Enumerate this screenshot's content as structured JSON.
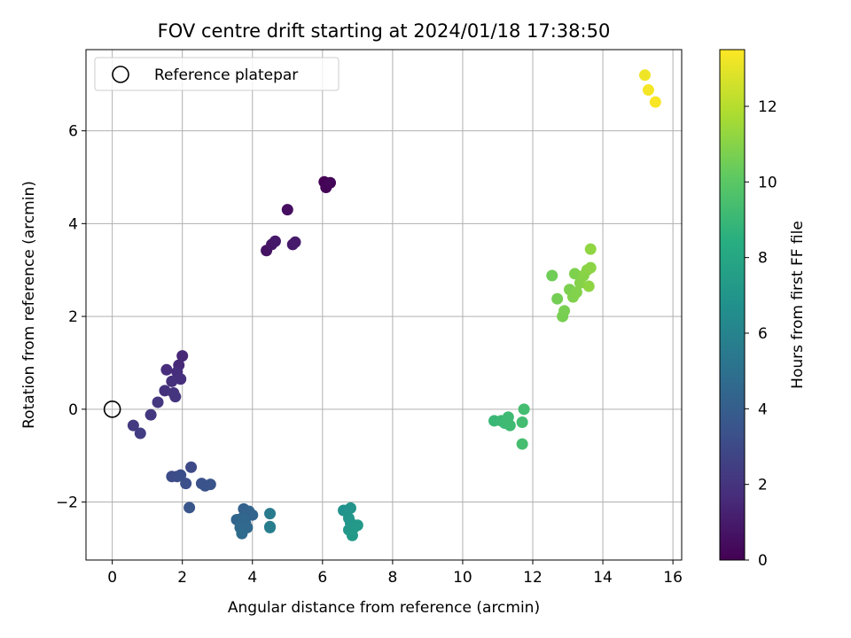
{
  "chart_data": {
    "type": "scatter",
    "title": "FOV centre drift starting at 2024/01/18 17:38:50",
    "xlabel": "Angular distance from reference (arcmin)",
    "ylabel": "Rotation from reference (arcmin)",
    "xlim": [
      -0.75,
      16.25
    ],
    "ylim": [
      -3.25,
      7.75
    ],
    "xticks": [
      0,
      2,
      4,
      6,
      8,
      10,
      12,
      14,
      16
    ],
    "xtick_labels": [
      "0",
      "2",
      "4",
      "6",
      "8",
      "10",
      "12",
      "14",
      "16"
    ],
    "yticks": [
      -2,
      0,
      2,
      4,
      6
    ],
    "ytick_labels": [
      "−2",
      "0",
      "2",
      "4",
      "6"
    ],
    "grid": true,
    "legend": {
      "placement": "upper-left",
      "entries": [
        {
          "label": "Reference platepar",
          "marker": "open-circle"
        }
      ]
    },
    "reference_point": {
      "x": 0,
      "y": 0
    },
    "colorbar": {
      "label": "Hours from first FF file",
      "range": [
        0,
        13.5
      ],
      "ticks": [
        0,
        2,
        4,
        6,
        8,
        10,
        12
      ],
      "tick_labels": [
        "0",
        "2",
        "4",
        "6",
        "8",
        "10",
        "12"
      ],
      "colormap": "viridis"
    },
    "points": [
      {
        "x": 6.05,
        "y": 4.9,
        "c": 0.0
      },
      {
        "x": 6.15,
        "y": 4.85,
        "c": 0.1
      },
      {
        "x": 6.1,
        "y": 4.78,
        "c": 0.15
      },
      {
        "x": 6.22,
        "y": 4.88,
        "c": 0.2
      },
      {
        "x": 5.0,
        "y": 4.3,
        "c": 0.5
      },
      {
        "x": 4.4,
        "y": 3.42,
        "c": 0.7
      },
      {
        "x": 4.55,
        "y": 3.55,
        "c": 0.8
      },
      {
        "x": 4.65,
        "y": 3.62,
        "c": 0.9
      },
      {
        "x": 5.15,
        "y": 3.55,
        "c": 0.95
      },
      {
        "x": 5.22,
        "y": 3.6,
        "c": 1.0
      },
      {
        "x": 2.0,
        "y": 1.15,
        "c": 1.5
      },
      {
        "x": 1.9,
        "y": 0.95,
        "c": 1.6
      },
      {
        "x": 1.55,
        "y": 0.85,
        "c": 1.7
      },
      {
        "x": 1.85,
        "y": 0.8,
        "c": 1.75
      },
      {
        "x": 1.95,
        "y": 0.65,
        "c": 1.8
      },
      {
        "x": 1.7,
        "y": 0.6,
        "c": 1.85
      },
      {
        "x": 1.5,
        "y": 0.4,
        "c": 1.9
      },
      {
        "x": 1.75,
        "y": 0.35,
        "c": 1.95
      },
      {
        "x": 1.8,
        "y": 0.27,
        "c": 2.0
      },
      {
        "x": 1.3,
        "y": 0.15,
        "c": 2.1
      },
      {
        "x": 1.1,
        "y": -0.12,
        "c": 2.2
      },
      {
        "x": 0.6,
        "y": -0.35,
        "c": 2.3
      },
      {
        "x": 0.8,
        "y": -0.52,
        "c": 2.4
      },
      {
        "x": 2.25,
        "y": -1.25,
        "c": 3.0
      },
      {
        "x": 1.7,
        "y": -1.45,
        "c": 3.1
      },
      {
        "x": 1.85,
        "y": -1.45,
        "c": 3.15
      },
      {
        "x": 1.95,
        "y": -1.42,
        "c": 3.2
      },
      {
        "x": 2.1,
        "y": -1.6,
        "c": 3.3
      },
      {
        "x": 2.55,
        "y": -1.6,
        "c": 3.4
      },
      {
        "x": 2.65,
        "y": -1.65,
        "c": 3.45
      },
      {
        "x": 2.8,
        "y": -1.62,
        "c": 3.5
      },
      {
        "x": 2.2,
        "y": -2.12,
        "c": 3.6
      },
      {
        "x": 3.75,
        "y": -2.15,
        "c": 4.2
      },
      {
        "x": 3.9,
        "y": -2.2,
        "c": 4.3
      },
      {
        "x": 4.0,
        "y": -2.28,
        "c": 4.35
      },
      {
        "x": 3.55,
        "y": -2.38,
        "c": 4.4
      },
      {
        "x": 3.7,
        "y": -2.35,
        "c": 4.45
      },
      {
        "x": 3.8,
        "y": -2.45,
        "c": 4.5
      },
      {
        "x": 3.85,
        "y": -2.55,
        "c": 4.55
      },
      {
        "x": 3.65,
        "y": -2.55,
        "c": 4.6
      },
      {
        "x": 3.7,
        "y": -2.68,
        "c": 4.7
      },
      {
        "x": 4.5,
        "y": -2.25,
        "c": 5.5
      },
      {
        "x": 4.5,
        "y": -2.53,
        "c": 5.6
      },
      {
        "x": 4.5,
        "y": -2.55,
        "c": 5.65
      },
      {
        "x": 6.6,
        "y": -2.18,
        "c": 6.8
      },
      {
        "x": 6.8,
        "y": -2.13,
        "c": 6.9
      },
      {
        "x": 6.75,
        "y": -2.35,
        "c": 7.0
      },
      {
        "x": 6.8,
        "y": -2.45,
        "c": 7.05
      },
      {
        "x": 6.75,
        "y": -2.6,
        "c": 7.1
      },
      {
        "x": 6.9,
        "y": -2.55,
        "c": 7.15
      },
      {
        "x": 7.0,
        "y": -2.5,
        "c": 7.2
      },
      {
        "x": 6.85,
        "y": -2.72,
        "c": 7.3
      },
      {
        "x": 10.9,
        "y": -0.25,
        "c": 9.0
      },
      {
        "x": 11.1,
        "y": -0.25,
        "c": 9.05
      },
      {
        "x": 11.2,
        "y": -0.3,
        "c": 9.1
      },
      {
        "x": 11.3,
        "y": -0.17,
        "c": 9.15
      },
      {
        "x": 11.35,
        "y": -0.35,
        "c": 9.2
      },
      {
        "x": 11.7,
        "y": -0.28,
        "c": 9.3
      },
      {
        "x": 11.75,
        "y": 0.0,
        "c": 9.35
      },
      {
        "x": 11.7,
        "y": -0.75,
        "c": 9.4
      },
      {
        "x": 12.55,
        "y": 2.88,
        "c": 10.5
      },
      {
        "x": 12.7,
        "y": 2.38,
        "c": 10.6
      },
      {
        "x": 12.85,
        "y": 2.0,
        "c": 10.65
      },
      {
        "x": 12.9,
        "y": 2.12,
        "c": 10.7
      },
      {
        "x": 13.05,
        "y": 2.58,
        "c": 10.75
      },
      {
        "x": 13.2,
        "y": 2.92,
        "c": 10.8
      },
      {
        "x": 13.15,
        "y": 2.42,
        "c": 10.85
      },
      {
        "x": 13.25,
        "y": 2.52,
        "c": 10.9
      },
      {
        "x": 13.35,
        "y": 2.72,
        "c": 10.95
      },
      {
        "x": 13.45,
        "y": 2.88,
        "c": 11.0
      },
      {
        "x": 13.55,
        "y": 3.0,
        "c": 11.05
      },
      {
        "x": 13.65,
        "y": 3.05,
        "c": 11.1
      },
      {
        "x": 13.6,
        "y": 2.65,
        "c": 11.15
      },
      {
        "x": 13.65,
        "y": 3.45,
        "c": 11.2
      },
      {
        "x": 15.2,
        "y": 7.2,
        "c": 13.2
      },
      {
        "x": 15.3,
        "y": 6.88,
        "c": 13.3
      },
      {
        "x": 15.5,
        "y": 6.62,
        "c": 13.4
      }
    ]
  }
}
